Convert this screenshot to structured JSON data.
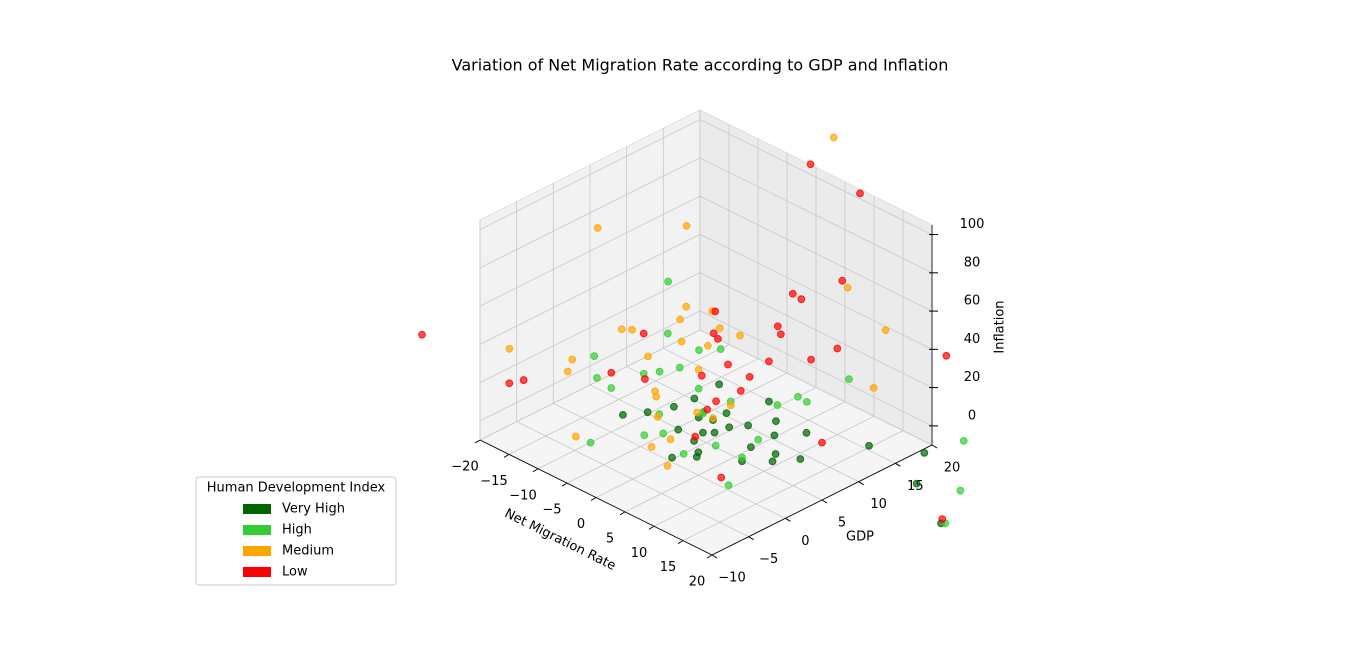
{
  "chart_data": {
    "type": "scatter3d",
    "title": "Variation of Net Migration Rate according to GDP and Inflation",
    "x_label": "Net Migration Rate",
    "y_label": "GDP",
    "z_label": "Inflation",
    "legend_title": "Human Development Index",
    "legend_position": "lower left",
    "grid": true,
    "xlim": [
      -20,
      20
    ],
    "ylim": [
      -10,
      20
    ],
    "zlim": [
      -10,
      105
    ],
    "xticks": [
      {
        "value": -20,
        "label": "−20"
      },
      {
        "value": -15,
        "label": "−15"
      },
      {
        "value": -10,
        "label": "−10"
      },
      {
        "value": -5,
        "label": "−5"
      },
      0,
      5,
      10,
      15,
      20
    ],
    "yticks": [
      {
        "value": -10,
        "label": "−10"
      },
      {
        "value": -5,
        "label": "−5"
      },
      0,
      5,
      10,
      15,
      20
    ],
    "zticks": [
      0,
      20,
      40,
      60,
      80,
      100
    ],
    "series": [
      {
        "name": "Very High",
        "color": "#006400",
        "x": [
          2,
          4,
          -1,
          6,
          3,
          8,
          0,
          5,
          -3,
          10,
          1,
          7,
          12,
          3,
          -5,
          9,
          2,
          15,
          4,
          -2,
          6,
          11,
          30,
          38,
          25,
          18,
          5,
          1,
          -8,
          14
        ],
        "y": [
          3,
          5,
          2,
          6,
          1,
          8,
          4,
          0,
          3,
          2,
          7,
          9,
          5,
          -2,
          1,
          4,
          12,
          6,
          3,
          5,
          -1,
          10,
          10,
          7,
          15,
          13,
          2,
          6,
          0,
          3
        ],
        "z": [
          2,
          4,
          1,
          6,
          3,
          0,
          5,
          2,
          8,
          1,
          3,
          4,
          2,
          0,
          6,
          3,
          1,
          2,
          5,
          10,
          3,
          2,
          4,
          1,
          3,
          0,
          15,
          20,
          2,
          5
        ]
      },
      {
        "name": "High",
        "color": "#32cd32",
        "x": [
          -3,
          2,
          5,
          -8,
          0,
          8,
          -12,
          4,
          10,
          -5,
          1,
          6,
          -2,
          14,
          3,
          -15,
          7,
          -6,
          12,
          0,
          -10,
          9,
          35,
          28,
          -4,
          16,
          2,
          -18,
          6,
          40
        ],
        "y": [
          1,
          3,
          -2,
          5,
          4,
          0,
          6,
          -4,
          2,
          8,
          -1,
          10,
          3,
          -3,
          6,
          2,
          12,
          -6,
          15,
          7,
          0,
          5,
          12,
          18,
          3,
          -8,
          -5,
          4,
          14,
          6
        ],
        "z": [
          8,
          12,
          5,
          15,
          20,
          10,
          6,
          18,
          3,
          25,
          60,
          9,
          30,
          4,
          14,
          7,
          11,
          2,
          22,
          35,
          13,
          5,
          4,
          8,
          72,
          55,
          16,
          10,
          3,
          6
        ]
      },
      {
        "name": "Medium",
        "color": "#ffa500",
        "x": [
          -5,
          -10,
          -2,
          -8,
          0,
          -15,
          3,
          -6,
          -12,
          2,
          -3,
          -18,
          -7,
          5,
          -1,
          -9,
          -4,
          -14,
          1,
          -20,
          8,
          -11,
          6,
          -16,
          12,
          -2,
          15,
          -6,
          -25,
          4
        ],
        "y": [
          2,
          5,
          0,
          8,
          4,
          -2,
          6,
          10,
          3,
          -4,
          12,
          1,
          7,
          2,
          -1,
          14,
          9,
          6,
          3,
          -6,
          18,
          11,
          -5,
          15,
          20,
          24,
          16,
          -8,
          10,
          -3
        ],
        "z": [
          15,
          20,
          10,
          25,
          30,
          18,
          12,
          22,
          35,
          8,
          28,
          14,
          40,
          16,
          24,
          19,
          45,
          26,
          11,
          30,
          58,
          33,
          6,
          60,
          38,
          110,
          20,
          9,
          55,
          13
        ]
      },
      {
        "name": "Low",
        "color": "#ff0000",
        "x": [
          -2,
          0,
          3,
          -5,
          2,
          -8,
          5,
          1,
          -3,
          6,
          -1,
          -6,
          4,
          0,
          8,
          -10,
          -4,
          7,
          2,
          -12,
          10,
          -20,
          -15,
          20,
          -30,
          42,
          25,
          -6,
          14,
          0
        ],
        "y": [
          6,
          8,
          4,
          10,
          12,
          3,
          7,
          14,
          9,
          5,
          16,
          11,
          2,
          18,
          13,
          0,
          20,
          -2,
          22,
          6,
          15,
          -6,
          -8,
          5,
          -10,
          4,
          18,
          24,
          -4,
          26
        ],
        "z": [
          20,
          25,
          18,
          30,
          22,
          15,
          28,
          35,
          32,
          26,
          24,
          38,
          19,
          40,
          30,
          21,
          33,
          17,
          45,
          27,
          35,
          12,
          25,
          20,
          30,
          15,
          48,
          90,
          10,
          80
        ]
      }
    ]
  }
}
